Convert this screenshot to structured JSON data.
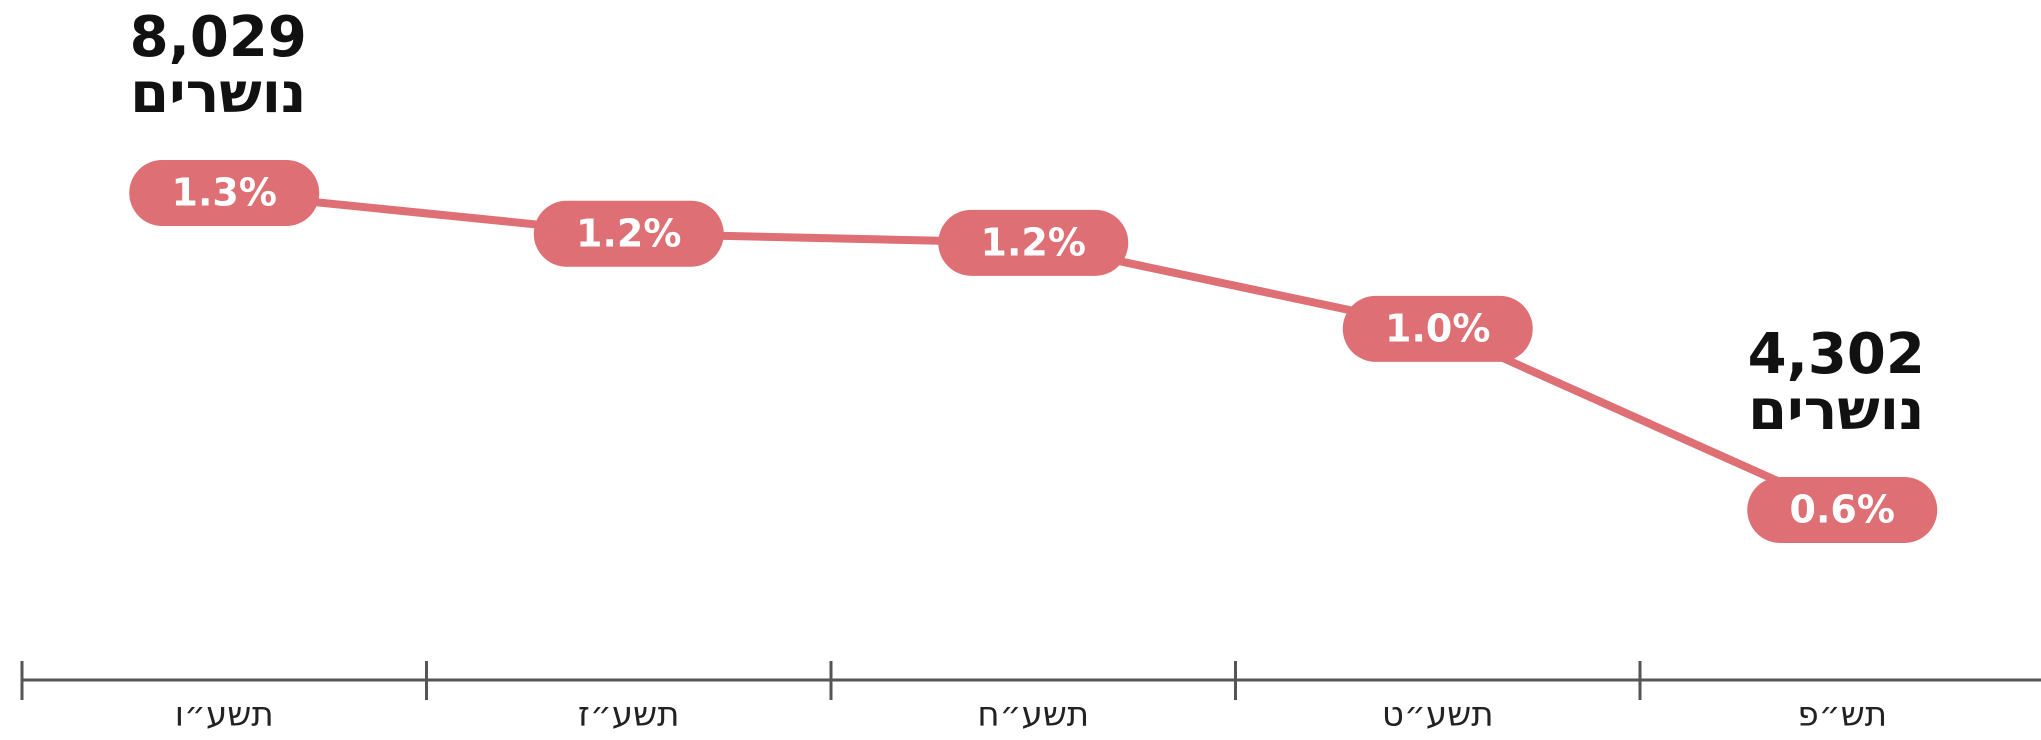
{
  "chart_data": {
    "type": "line",
    "categories": [
      "תשע״ו",
      "תשע״ז",
      "תשע״ח",
      "תשע״ט",
      "תש״פ"
    ],
    "values": [
      1.3,
      1.21,
      1.19,
      1.0,
      0.6
    ],
    "value_labels": [
      "1.3%",
      "1.2%",
      "1.2%",
      "1.0%",
      "0.6%"
    ],
    "color": "#de6f74",
    "annotations": [
      {
        "category": "תשע״ו",
        "number": "8,029",
        "text": "נושרים"
      },
      {
        "category": "תש״פ",
        "number": "4,302",
        "text": "נושרים"
      }
    ]
  }
}
